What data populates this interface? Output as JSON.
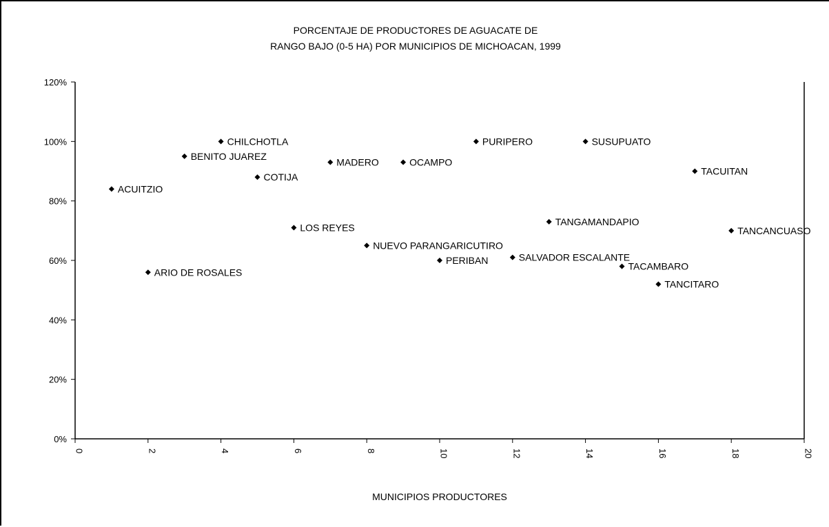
{
  "chart_data": {
    "type": "scatter",
    "title_lines": [
      "PORCENTAJE DE PRODUCTORES DE AGUACATE DE",
      "RANGO BAJO (0-5 HA) POR MUNICIPIOS DE MICHOACAN, 1999"
    ],
    "xlabel": "MUNICIPIOS PRODUCTORES",
    "ylabel": "",
    "xlim": [
      0,
      20
    ],
    "ylim": [
      0,
      1.2
    ],
    "x_ticks": [
      "0",
      "2",
      "4",
      "6",
      "8",
      "10",
      "12",
      "14",
      "16",
      "18",
      "20"
    ],
    "y_ticks": [
      "0%",
      "20%",
      "40%",
      "60%",
      "80%",
      "100%",
      "120%"
    ],
    "grid": false,
    "points": [
      {
        "x": 1,
        "y": 0.84,
        "label": "ACUITZIO"
      },
      {
        "x": 2,
        "y": 0.56,
        "label": "ARIO DE ROSALES"
      },
      {
        "x": 3,
        "y": 0.95,
        "label": "BENITO JUAREZ"
      },
      {
        "x": 4,
        "y": 1.0,
        "label": "CHILCHOTLA"
      },
      {
        "x": 5,
        "y": 0.88,
        "label": "COTIJA"
      },
      {
        "x": 6,
        "y": 0.71,
        "label": "LOS REYES"
      },
      {
        "x": 7,
        "y": 0.93,
        "label": "MADERO"
      },
      {
        "x": 8,
        "y": 0.65,
        "label": "NUEVO PARANGARICUTIRO"
      },
      {
        "x": 9,
        "y": 0.93,
        "label": "OCAMPO"
      },
      {
        "x": 10,
        "y": 0.6,
        "label": "PERIBAN"
      },
      {
        "x": 11,
        "y": 1.0,
        "label": "PURIPERO"
      },
      {
        "x": 12,
        "y": 0.61,
        "label": "SALVADOR ESCALANTE"
      },
      {
        "x": 13,
        "y": 0.73,
        "label": "TANGAMANDAPIO"
      },
      {
        "x": 14,
        "y": 1.0,
        "label": "SUSUPUATO"
      },
      {
        "x": 15,
        "y": 0.58,
        "label": "TACAMBARO"
      },
      {
        "x": 16,
        "y": 0.52,
        "label": "TANCITARO"
      },
      {
        "x": 17,
        "y": 0.9,
        "label": "TACUITAN"
      },
      {
        "x": 18,
        "y": 0.7,
        "label": "TANCANCUASO"
      }
    ]
  }
}
